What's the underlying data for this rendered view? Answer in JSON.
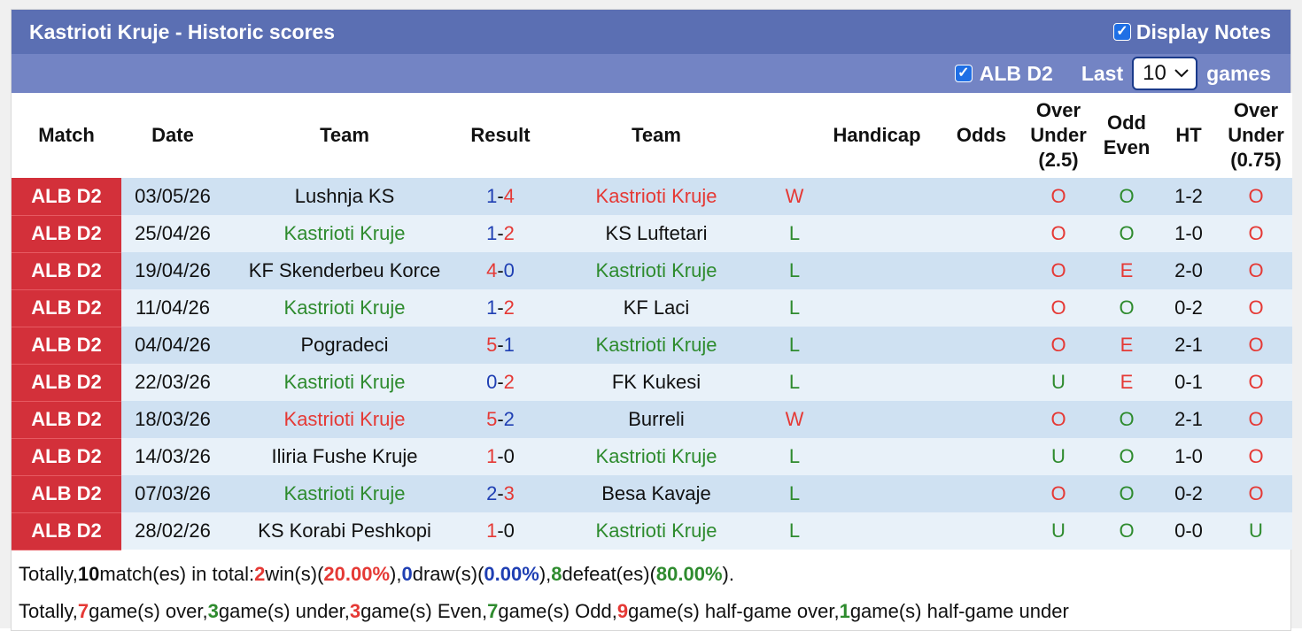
{
  "header": {
    "title": "Kastrioti Kruje - Historic scores",
    "display_notes_label": "Display Notes",
    "display_notes_checked": true
  },
  "filter": {
    "league_label": "ALB D2",
    "league_checked": true,
    "last_label": "Last",
    "last_value": "10",
    "games_label": "games"
  },
  "columns": {
    "match": "Match",
    "date": "Date",
    "team_home": "Team",
    "result": "Result",
    "team_away": "Team",
    "handicap": "Handicap",
    "odds": "Odds",
    "ou_line1": "Over",
    "ou_line2": "Under",
    "ou_line3": "(2.5)",
    "oe_line1": "Odd",
    "oe_line2": "Even",
    "ht": "HT",
    "ou2_line1": "Over",
    "ou2_line2": "Under",
    "ou2_line3": "(0.75)"
  },
  "rows": [
    {
      "league": "ALB D2",
      "date": "03/05/26",
      "home": "Lushnja KS",
      "home_color": "black",
      "hs": "1",
      "as": "4",
      "hs_color": "blue",
      "as_color": "red",
      "away": "Kastrioti Kruje",
      "away_color": "red",
      "wl": "W",
      "wl_color": "red",
      "ou": "O",
      "ou_color": "red",
      "oe": "O",
      "oe_color": "green",
      "ht": "1-2",
      "ou2": "O",
      "ou2_color": "red"
    },
    {
      "league": "ALB D2",
      "date": "25/04/26",
      "home": "Kastrioti Kruje",
      "home_color": "green",
      "hs": "1",
      "as": "2",
      "hs_color": "blue",
      "as_color": "red",
      "away": "KS Luftetari",
      "away_color": "black",
      "wl": "L",
      "wl_color": "green",
      "ou": "O",
      "ou_color": "red",
      "oe": "O",
      "oe_color": "green",
      "ht": "1-0",
      "ou2": "O",
      "ou2_color": "red"
    },
    {
      "league": "ALB D2",
      "date": "19/04/26",
      "home": "KF Skenderbeu Korce",
      "home_color": "black",
      "hs": "4",
      "as": "0",
      "hs_color": "red",
      "as_color": "blue",
      "away": "Kastrioti Kruje",
      "away_color": "green",
      "wl": "L",
      "wl_color": "green",
      "ou": "O",
      "ou_color": "red",
      "oe": "E",
      "oe_color": "red",
      "ht": "2-0",
      "ou2": "O",
      "ou2_color": "red"
    },
    {
      "league": "ALB D2",
      "date": "11/04/26",
      "home": "Kastrioti Kruje",
      "home_color": "green",
      "hs": "1",
      "as": "2",
      "hs_color": "blue",
      "as_color": "red",
      "away": "KF Laci",
      "away_color": "black",
      "wl": "L",
      "wl_color": "green",
      "ou": "O",
      "ou_color": "red",
      "oe": "O",
      "oe_color": "green",
      "ht": "0-2",
      "ou2": "O",
      "ou2_color": "red"
    },
    {
      "league": "ALB D2",
      "date": "04/04/26",
      "home": "Pogradeci",
      "home_color": "black",
      "hs": "5",
      "as": "1",
      "hs_color": "red",
      "as_color": "blue",
      "away": "Kastrioti Kruje",
      "away_color": "green",
      "wl": "L",
      "wl_color": "green",
      "ou": "O",
      "ou_color": "red",
      "oe": "E",
      "oe_color": "red",
      "ht": "2-1",
      "ou2": "O",
      "ou2_color": "red"
    },
    {
      "league": "ALB D2",
      "date": "22/03/26",
      "home": "Kastrioti Kruje",
      "home_color": "green",
      "hs": "0",
      "as": "2",
      "hs_color": "blue",
      "as_color": "red",
      "away": "FK Kukesi",
      "away_color": "black",
      "wl": "L",
      "wl_color": "green",
      "ou": "U",
      "ou_color": "green",
      "oe": "E",
      "oe_color": "red",
      "ht": "0-1",
      "ou2": "O",
      "ou2_color": "red"
    },
    {
      "league": "ALB D2",
      "date": "18/03/26",
      "home": "Kastrioti Kruje",
      "home_color": "red",
      "hs": "5",
      "as": "2",
      "hs_color": "red",
      "as_color": "blue",
      "away": "Burreli",
      "away_color": "black",
      "wl": "W",
      "wl_color": "red",
      "ou": "O",
      "ou_color": "red",
      "oe": "O",
      "oe_color": "green",
      "ht": "2-1",
      "ou2": "O",
      "ou2_color": "red"
    },
    {
      "league": "ALB D2",
      "date": "14/03/26",
      "home": "Iliria Fushe Kruje",
      "home_color": "black",
      "hs": "1",
      "as": "0",
      "hs_color": "red",
      "as_color": "black",
      "away": "Kastrioti Kruje",
      "away_color": "green",
      "wl": "L",
      "wl_color": "green",
      "ou": "U",
      "ou_color": "green",
      "oe": "O",
      "oe_color": "green",
      "ht": "1-0",
      "ou2": "O",
      "ou2_color": "red"
    },
    {
      "league": "ALB D2",
      "date": "07/03/26",
      "home": "Kastrioti Kruje",
      "home_color": "green",
      "hs": "2",
      "as": "3",
      "hs_color": "blue",
      "as_color": "red",
      "away": "Besa Kavaje",
      "away_color": "black",
      "wl": "L",
      "wl_color": "green",
      "ou": "O",
      "ou_color": "red",
      "oe": "O",
      "oe_color": "green",
      "ht": "0-2",
      "ou2": "O",
      "ou2_color": "red"
    },
    {
      "league": "ALB D2",
      "date": "28/02/26",
      "home": "KS Korabi Peshkopi",
      "home_color": "black",
      "hs": "1",
      "as": "0",
      "hs_color": "red",
      "as_color": "black",
      "away": "Kastrioti Kruje",
      "away_color": "green",
      "wl": "L",
      "wl_color": "green",
      "ou": "U",
      "ou_color": "green",
      "oe": "O",
      "oe_color": "green",
      "ht": "0-0",
      "ou2": "U",
      "ou2_color": "green"
    }
  ],
  "summary1": {
    "t1": "Totally, ",
    "matches": "10",
    "t2": " match(es) in total: ",
    "wins": "2",
    "t3": " win(s)(",
    "win_pct": "20.00%",
    "t4": "), ",
    "draws": "0",
    "t5": " draw(s)(",
    "draw_pct": "0.00%",
    "t6": "), ",
    "defeats": "8",
    "t7": " defeat(es)(",
    "defeat_pct": "80.00%",
    "t8": ")."
  },
  "summary2": {
    "t1": "Totally, ",
    "over": "7",
    "t2": " game(s) over, ",
    "under": "3",
    "t3": " game(s) under, ",
    "even": "3",
    "t4": " game(s) Even, ",
    "odd": "7",
    "t5": " game(s) Odd, ",
    "hg_over": "9",
    "t6": " game(s) half-game over, ",
    "hg_under": "1",
    "t7": " game(s) half-game under"
  },
  "colors": {
    "title_bar": "#5b6fb3",
    "filter_bar": "#7384c4",
    "league_badge": "#d3303a",
    "row_dark": "#cfe1f2",
    "row_light": "#e8f1f9",
    "win_red": "#e53935",
    "loss_green": "#2e8b2e",
    "score_blue": "#1f3fb3"
  }
}
